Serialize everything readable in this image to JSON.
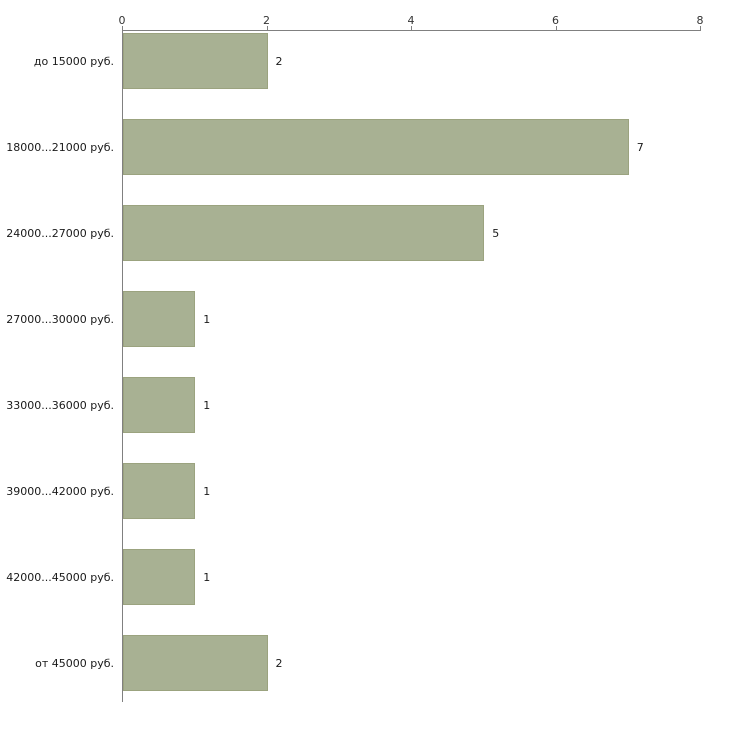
{
  "chart_data": {
    "type": "bar",
    "orientation": "horizontal",
    "title": "",
    "xlabel": "",
    "ylabel": "",
    "categories": [
      "до 15000 руб.",
      "18000...21000 руб.",
      "24000...27000 руб.",
      "27000...30000 руб.",
      "33000...36000 руб.",
      "39000...42000 руб.",
      "42000...45000 руб.",
      "от 45000 руб."
    ],
    "values": [
      2,
      7,
      5,
      1,
      1,
      1,
      1,
      2
    ],
    "xlim": [
      0,
      8
    ],
    "x_ticks": [
      "0",
      "2",
      "4",
      "6",
      "8"
    ],
    "axis_position": "top",
    "grid": false,
    "legend": false,
    "bar_color": "#a8b193",
    "bar_border_color": "#9ba37f",
    "axis_color": "#808080",
    "text_color": "#1a1a1a",
    "background_color": "#ffffff"
  }
}
